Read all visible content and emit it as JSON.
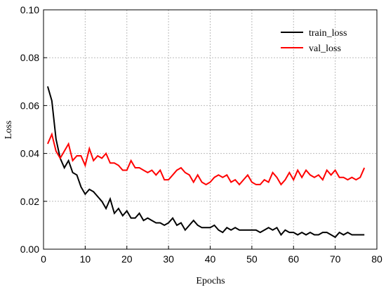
{
  "chart_data": {
    "type": "line",
    "x_label": "Epochs",
    "y_label": "Loss",
    "x": [
      1,
      2,
      3,
      4,
      5,
      6,
      7,
      8,
      9,
      10,
      11,
      12,
      13,
      14,
      15,
      16,
      17,
      18,
      19,
      20,
      21,
      22,
      23,
      24,
      25,
      26,
      27,
      28,
      29,
      30,
      31,
      32,
      33,
      34,
      35,
      36,
      37,
      38,
      39,
      40,
      41,
      42,
      43,
      44,
      45,
      46,
      47,
      48,
      49,
      50,
      51,
      52,
      53,
      54,
      55,
      56,
      57,
      58,
      59,
      60,
      61,
      62,
      63,
      64,
      65,
      66,
      67,
      68,
      69,
      70,
      71,
      72,
      73,
      74,
      75,
      76,
      77
    ],
    "series": [
      {
        "name": "train_loss",
        "color": "#000000",
        "values": [
          0.068,
          0.062,
          0.046,
          0.038,
          0.034,
          0.037,
          0.032,
          0.031,
          0.026,
          0.023,
          0.025,
          0.024,
          0.022,
          0.02,
          0.017,
          0.021,
          0.015,
          0.017,
          0.014,
          0.016,
          0.013,
          0.013,
          0.015,
          0.012,
          0.013,
          0.012,
          0.011,
          0.011,
          0.01,
          0.011,
          0.013,
          0.01,
          0.011,
          0.008,
          0.01,
          0.012,
          0.01,
          0.009,
          0.009,
          0.009,
          0.01,
          0.008,
          0.007,
          0.009,
          0.008,
          0.009,
          0.008,
          0.008,
          0.008,
          0.008,
          0.008,
          0.007,
          0.008,
          0.009,
          0.008,
          0.009,
          0.006,
          0.008,
          0.007,
          0.007,
          0.006,
          0.007,
          0.006,
          0.007,
          0.006,
          0.006,
          0.007,
          0.007,
          0.006,
          0.005,
          0.007,
          0.006,
          0.007,
          0.006,
          0.006,
          0.006,
          0.006
        ]
      },
      {
        "name": "val_loss",
        "color": "#ff0000",
        "values": [
          0.044,
          0.048,
          0.041,
          0.038,
          0.041,
          0.044,
          0.037,
          0.039,
          0.039,
          0.035,
          0.042,
          0.037,
          0.039,
          0.038,
          0.04,
          0.036,
          0.036,
          0.035,
          0.033,
          0.033,
          0.037,
          0.034,
          0.034,
          0.033,
          0.032,
          0.033,
          0.031,
          0.033,
          0.029,
          0.029,
          0.031,
          0.033,
          0.034,
          0.032,
          0.031,
          0.028,
          0.031,
          0.028,
          0.027,
          0.028,
          0.03,
          0.031,
          0.03,
          0.031,
          0.028,
          0.029,
          0.027,
          0.029,
          0.031,
          0.028,
          0.027,
          0.027,
          0.029,
          0.028,
          0.032,
          0.03,
          0.027,
          0.029,
          0.032,
          0.029,
          0.033,
          0.03,
          0.033,
          0.031,
          0.03,
          0.031,
          0.029,
          0.033,
          0.031,
          0.033,
          0.03,
          0.03,
          0.029,
          0.03,
          0.029,
          0.03,
          0.034
        ]
      }
    ],
    "xlim": [
      0,
      80
    ],
    "xticks": [
      0,
      10,
      20,
      30,
      40,
      50,
      60,
      70,
      80
    ],
    "ylim": [
      0,
      0.1
    ],
    "yticks": [
      {
        "value": 0,
        "label": "0.00"
      },
      {
        "value": 0.02,
        "label": "0.02"
      },
      {
        "value": 0.04,
        "label": "0.04"
      },
      {
        "value": 0.06,
        "label": "0.06"
      },
      {
        "value": 0.08,
        "label": "0.08"
      },
      {
        "value": 0.1,
        "label": "0.10"
      }
    ],
    "grid": true,
    "legend": "upper right"
  }
}
